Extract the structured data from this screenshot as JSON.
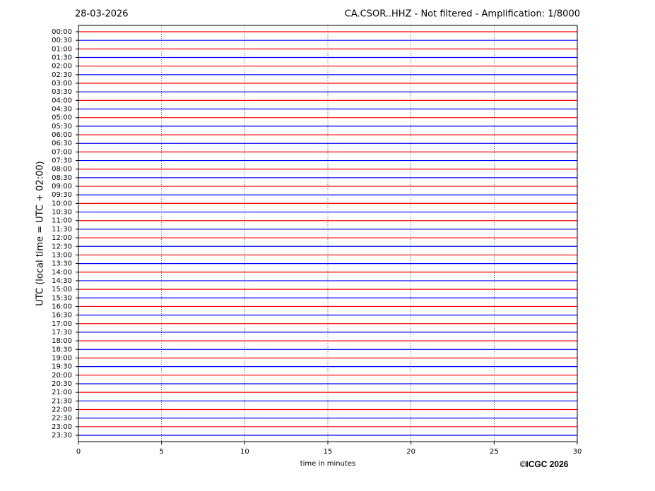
{
  "chart_data": {
    "type": "helicorder",
    "date": "28-03-2026",
    "title": "CA.CSOR..HHZ - Not filtered - Amplification: 1/8000",
    "ylabel": "UTC (local time = UTC + 02:00)",
    "xlabel": "time in minutes",
    "credit": "©ICGC 2026",
    "categories": [
      "00:00",
      "00:30",
      "01:00",
      "01:30",
      "02:00",
      "02:30",
      "03:00",
      "03:30",
      "04:00",
      "04:30",
      "05:00",
      "05:30",
      "06:00",
      "06:30",
      "07:00",
      "07:30",
      "08:00",
      "08:30",
      "09:00",
      "09:30",
      "10:00",
      "10:30",
      "11:00",
      "11:30",
      "12:00",
      "12:30",
      "13:00",
      "13:30",
      "14:00",
      "14:30",
      "15:00",
      "15:30",
      "16:00",
      "16:30",
      "17:00",
      "17:30",
      "18:00",
      "18:30",
      "19:00",
      "19:30",
      "20:00",
      "20:30",
      "21:00",
      "21:30",
      "22:00",
      "22:30",
      "23:00",
      "23:30"
    ],
    "colors": [
      "#ff0000",
      "#0000ff"
    ],
    "xlim": [
      0,
      30
    ],
    "xticks": [
      0,
      5,
      10,
      15,
      20,
      25,
      30
    ],
    "grid": true
  }
}
